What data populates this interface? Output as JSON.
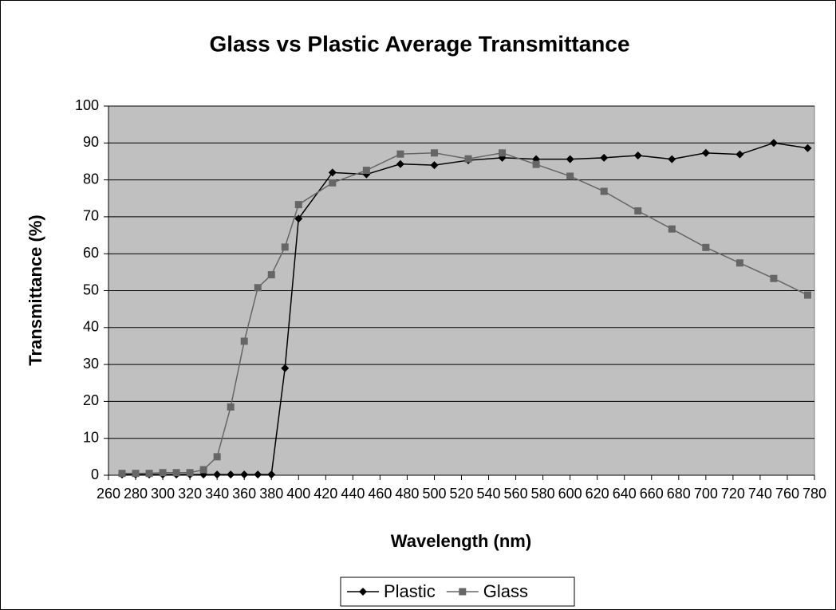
{
  "chart_data": {
    "type": "line",
    "title": "Glass vs Plastic Average Transmittance",
    "x_label": "Wavelength (nm)",
    "y_label": "Transmittance (%)",
    "x": [
      270,
      280,
      290,
      300,
      310,
      320,
      330,
      340,
      350,
      360,
      370,
      380,
      390,
      400,
      425,
      450,
      475,
      500,
      525,
      550,
      575,
      600,
      625,
      650,
      675,
      700,
      725,
      750,
      775
    ],
    "series": [
      {
        "name": "Plastic",
        "color": "#000000",
        "marker": "diamond",
        "values": [
          0.2,
          0.2,
          0.2,
          0.2,
          0.2,
          0.2,
          0.2,
          0.2,
          0.2,
          0.2,
          0.2,
          0.2,
          29,
          69.5,
          82,
          81.5,
          84.3,
          84,
          85.3,
          86,
          85.6,
          85.6,
          86,
          86.6,
          85.6,
          87.3,
          86.9,
          90,
          88.6
        ]
      },
      {
        "name": "Glass",
        "color": "#666666",
        "marker": "square",
        "values": [
          0.5,
          0.5,
          0.5,
          0.7,
          0.7,
          0.7,
          1.5,
          5,
          18.5,
          36.3,
          50.8,
          54.3,
          61.8,
          73.3,
          79.2,
          82.6,
          87,
          87.3,
          85.7,
          87.3,
          84.2,
          81,
          76.9,
          71.6,
          66.7,
          61.7,
          57.5,
          53.3,
          48.8
        ]
      }
    ],
    "xlim": [
      260,
      780
    ],
    "xticks": [
      260,
      280,
      300,
      320,
      340,
      360,
      380,
      400,
      420,
      440,
      460,
      480,
      500,
      520,
      540,
      560,
      580,
      600,
      620,
      640,
      660,
      680,
      700,
      720,
      740,
      760,
      780
    ],
    "ylim": [
      0,
      100
    ],
    "yticks": [
      0,
      10,
      20,
      30,
      40,
      50,
      60,
      70,
      80,
      90,
      100
    ],
    "grid": true,
    "plot_background": "#c0c0c0",
    "legend": "bottom"
  }
}
